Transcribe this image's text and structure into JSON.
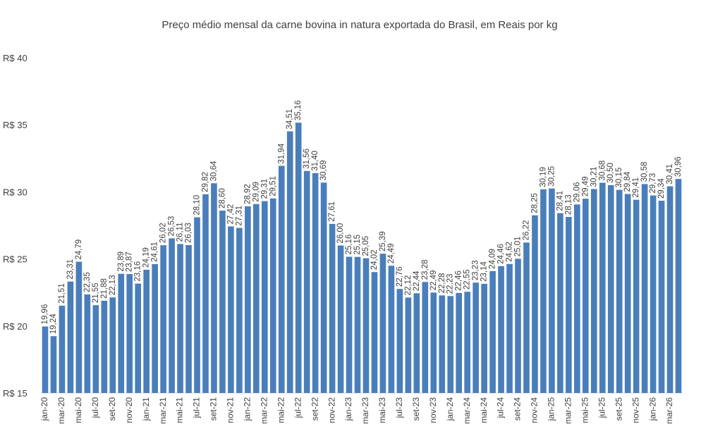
{
  "chart_data": {
    "type": "bar",
    "title": "Preço médio mensal da carne bovina in natura exportada do Brasil, em Reais por kg",
    "categories": [
      "jan-20",
      null,
      "mar-20",
      null,
      "mai-20",
      null,
      "jul-20",
      null,
      "set-20",
      null,
      "nov-20",
      null,
      "jan-21",
      null,
      "mar-21",
      null,
      "mai-21",
      null,
      "jul-21",
      null,
      "set-21",
      null,
      "nov-21",
      null,
      "jan-22",
      null,
      "mar-22",
      null,
      "mai-22",
      null,
      "jul-22",
      null,
      "set-22",
      null,
      "nov-22",
      null,
      "jan-23",
      null,
      "mar-23",
      null,
      "mai-23",
      null,
      "jul-23",
      null,
      "set-23",
      null,
      "nov-23",
      null,
      "jan-24",
      null,
      "mar-24",
      null,
      "mai-24",
      null,
      "jul-24",
      null,
      "set-24",
      null,
      "nov-24",
      null,
      "jan-25",
      null,
      "mar-25",
      null,
      "mai-25",
      null,
      "jul-25",
      null,
      "set-25",
      null,
      "nov-25",
      null,
      "jan-26",
      null,
      "mar-26",
      null
    ],
    "values": [
      19.96,
      19.24,
      21.51,
      23.31,
      24.79,
      22.35,
      21.55,
      21.88,
      22.13,
      23.89,
      23.87,
      23.16,
      24.19,
      24.61,
      26.02,
      26.53,
      26.11,
      26.03,
      28.1,
      29.82,
      30.64,
      28.6,
      27.42,
      27.31,
      28.92,
      29.09,
      29.31,
      29.51,
      31.94,
      34.51,
      35.16,
      31.56,
      31.4,
      30.69,
      27.61,
      26.0,
      25.16,
      25.15,
      25.05,
      24.02,
      25.39,
      24.49,
      22.76,
      22.12,
      22.44,
      23.28,
      22.49,
      22.28,
      22.23,
      22.46,
      22.55,
      23.23,
      23.14,
      24.09,
      24.46,
      24.62,
      25.01,
      26.22,
      28.25,
      30.19,
      30.25,
      28.41,
      28.13,
      29.06,
      29.49,
      30.21,
      30.68,
      30.5,
      30.15,
      29.84,
      29.41,
      30.58,
      29.73,
      29.34,
      30.41,
      30.96
    ],
    "value_labels": [
      "19,96",
      "19,24",
      "21,51",
      "23,31",
      "24,79",
      "22,35",
      "21,55",
      "21,88",
      "22,13",
      "23,89",
      "23,87",
      "23,16",
      "24,19",
      "24,61",
      "26,02",
      "26,53",
      "26,11",
      "26,03",
      "28,10",
      "29,82",
      "30,64",
      "28,60",
      "27,42",
      "27,31",
      "28,92",
      "29,09",
      "29,31",
      "29,51",
      "31,94",
      "34,51",
      "35,16",
      "31,56",
      "31,40",
      "30,69",
      "27,61",
      "26,00",
      "25,16",
      "25,15",
      "25,05",
      "24,02",
      "25,39",
      "24,49",
      "22,76",
      "22,12",
      "22,44",
      "23,28",
      "22,49",
      "22,28",
      "22,23",
      "22,46",
      "22,55",
      "23,23",
      "23,14",
      "24,09",
      "24,46",
      "24,62",
      "25,01",
      "26,22",
      "28,25",
      "30,19",
      "30,25",
      "28,41",
      "28,13",
      "29,06",
      "29,49",
      "30,21",
      "30,68",
      "30,50",
      "30,15",
      "29,84",
      "29,41",
      "30,58",
      "29,73",
      "29,34",
      "30,41",
      "30,96"
    ],
    "color": "#4a7ebb",
    "ylim": [
      15,
      40
    ],
    "yticks": [
      {
        "value": 15,
        "label": "R$ 15"
      },
      {
        "value": 20,
        "label": "R$ 20"
      },
      {
        "value": 25,
        "label": "R$ 25"
      },
      {
        "value": 30,
        "label": "R$ 30"
      },
      {
        "value": 35,
        "label": "R$ 35"
      },
      {
        "value": 40,
        "label": "R$ 40"
      }
    ],
    "grid": false
  }
}
